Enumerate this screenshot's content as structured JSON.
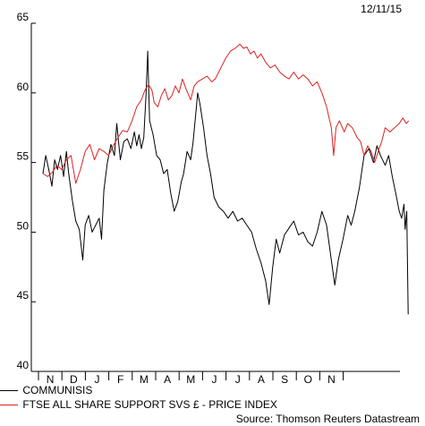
{
  "date_label": "12/11/15",
  "source_label": "Source: Thomson Reuters Datastream",
  "chart_data": {
    "type": "line",
    "title": "",
    "xlabel": "",
    "ylabel": "",
    "ylim": [
      40,
      65
    ],
    "y_ticks": [
      40,
      45,
      50,
      55,
      60,
      65
    ],
    "x_month_labels": [
      "N",
      "D",
      "J",
      "F",
      "M",
      "A",
      "M",
      "J",
      "J",
      "A",
      "S",
      "O",
      "N"
    ],
    "grid": false,
    "legend_position": "bottom-left",
    "series": [
      {
        "name": "COMMUNISIS",
        "color": "#000000",
        "points": [
          [
            0,
            54.2
          ],
          [
            0.12,
            55.5
          ],
          [
            0.25,
            54.5
          ],
          [
            0.38,
            53.3
          ],
          [
            0.5,
            55.2
          ],
          [
            0.62,
            54.5
          ],
          [
            0.75,
            55.5
          ],
          [
            0.88,
            54
          ],
          [
            1,
            55.8
          ],
          [
            1.1,
            54.2
          ],
          [
            1.25,
            52.3
          ],
          [
            1.4,
            50.8
          ],
          [
            1.55,
            50.2
          ],
          [
            1.7,
            48
          ],
          [
            1.8,
            50.5
          ],
          [
            1.95,
            51.2
          ],
          [
            2.1,
            50
          ],
          [
            2.25,
            50.5
          ],
          [
            2.4,
            51
          ],
          [
            2.5,
            49.5
          ],
          [
            2.6,
            53
          ],
          [
            2.75,
            55
          ],
          [
            2.9,
            56.3
          ],
          [
            3.05,
            55.5
          ],
          [
            3.15,
            57.8
          ],
          [
            3.3,
            55.2
          ],
          [
            3.45,
            56.5
          ],
          [
            3.6,
            56.7
          ],
          [
            3.75,
            56
          ],
          [
            3.9,
            57.2
          ],
          [
            4.0,
            56.2
          ],
          [
            4.1,
            57
          ],
          [
            4.2,
            56
          ],
          [
            4.3,
            56.8
          ],
          [
            4.4,
            60
          ],
          [
            4.47,
            63
          ],
          [
            4.55,
            58
          ],
          [
            4.7,
            57
          ],
          [
            4.85,
            55.5
          ],
          [
            5.0,
            55.2
          ],
          [
            5.15,
            54.2
          ],
          [
            5.3,
            54.5
          ],
          [
            5.45,
            52.8
          ],
          [
            5.6,
            51.5
          ],
          [
            5.75,
            52.2
          ],
          [
            5.9,
            53.6
          ],
          [
            6.0,
            54.2
          ],
          [
            6.15,
            55.8
          ],
          [
            6.3,
            55.2
          ],
          [
            6.4,
            56.4
          ],
          [
            6.52,
            58.5
          ],
          [
            6.6,
            60
          ],
          [
            6.7,
            59.2
          ],
          [
            6.85,
            57.5
          ],
          [
            7.0,
            55.5
          ],
          [
            7.15,
            54.2
          ],
          [
            7.3,
            52.5
          ],
          [
            7.5,
            51.8
          ],
          [
            7.7,
            51.5
          ],
          [
            7.9,
            51
          ],
          [
            8.1,
            51.5
          ],
          [
            8.3,
            50.8
          ],
          [
            8.5,
            51
          ],
          [
            8.7,
            50.5
          ],
          [
            8.9,
            50
          ],
          [
            9.1,
            48.8
          ],
          [
            9.3,
            47.8
          ],
          [
            9.5,
            46.5
          ],
          [
            9.65,
            44.8
          ],
          [
            9.8,
            47.5
          ],
          [
            9.95,
            49.5
          ],
          [
            10.1,
            48.5
          ],
          [
            10.3,
            49.8
          ],
          [
            10.5,
            50.3
          ],
          [
            10.7,
            50.8
          ],
          [
            10.9,
            49.8
          ],
          [
            11.1,
            50
          ],
          [
            11.3,
            49.3
          ],
          [
            11.5,
            49
          ],
          [
            11.7,
            50
          ],
          [
            11.9,
            51.5
          ],
          [
            12.1,
            50.5
          ],
          [
            12.3,
            48
          ],
          [
            12.45,
            46.2
          ],
          [
            12.6,
            48
          ],
          [
            12.8,
            49.5
          ],
          [
            13.0,
            51.2
          ],
          [
            13.15,
            50.5
          ],
          [
            13.3,
            51.5
          ],
          [
            13.5,
            53.2
          ],
          [
            13.7,
            55.5
          ],
          [
            13.9,
            56
          ],
          [
            14.1,
            55
          ],
          [
            14.25,
            56.2
          ],
          [
            14.4,
            55.5
          ],
          [
            14.6,
            54.8
          ],
          [
            14.75,
            55.5
          ],
          [
            14.9,
            54
          ],
          [
            15.05,
            52.8
          ],
          [
            15.2,
            51.5
          ],
          [
            15.3,
            51
          ],
          [
            15.4,
            52
          ],
          [
            15.45,
            50.2
          ],
          [
            15.52,
            51.5
          ],
          [
            15.58,
            44.1
          ]
        ]
      },
      {
        "name": "FTSE ALL SHARE SUPPORT SVS £ - PRICE INDEX",
        "color": "#dd2222",
        "points": [
          [
            0,
            54.2
          ],
          [
            0.2,
            54
          ],
          [
            0.4,
            54.3
          ],
          [
            0.6,
            54.8
          ],
          [
            0.8,
            54.5
          ],
          [
            1.0,
            55.2
          ],
          [
            1.2,
            55.5
          ],
          [
            1.4,
            53.5
          ],
          [
            1.6,
            54.5
          ],
          [
            1.8,
            55.8
          ],
          [
            2.0,
            56.3
          ],
          [
            2.2,
            55.2
          ],
          [
            2.4,
            56
          ],
          [
            2.6,
            55.8
          ],
          [
            2.8,
            55.5
          ],
          [
            3.0,
            56.2
          ],
          [
            3.2,
            56.8
          ],
          [
            3.4,
            57.3
          ],
          [
            3.6,
            57.2
          ],
          [
            3.8,
            58
          ],
          [
            4.0,
            59
          ],
          [
            4.2,
            59.5
          ],
          [
            4.35,
            60.2
          ],
          [
            4.5,
            60.6
          ],
          [
            4.65,
            60.2
          ],
          [
            4.75,
            59.3
          ],
          [
            4.9,
            59
          ],
          [
            5.05,
            59.8
          ],
          [
            5.2,
            60.3
          ],
          [
            5.35,
            59.5
          ],
          [
            5.5,
            59.8
          ],
          [
            5.65,
            60.5
          ],
          [
            5.8,
            60
          ],
          [
            5.95,
            61
          ],
          [
            6.1,
            60.3
          ],
          [
            6.3,
            59.5
          ],
          [
            6.45,
            60.5
          ],
          [
            6.6,
            60.8
          ],
          [
            6.8,
            61
          ],
          [
            7.0,
            61.2
          ],
          [
            7.2,
            60.8
          ],
          [
            7.35,
            61
          ],
          [
            7.5,
            61.5
          ],
          [
            7.65,
            62
          ],
          [
            7.8,
            62.5
          ],
          [
            8.0,
            63
          ],
          [
            8.2,
            63.2
          ],
          [
            8.4,
            63.5
          ],
          [
            8.55,
            63.2
          ],
          [
            8.7,
            63.3
          ],
          [
            8.85,
            62.8
          ],
          [
            9.0,
            63
          ],
          [
            9.15,
            62.5
          ],
          [
            9.3,
            62.8
          ],
          [
            9.5,
            62.2
          ],
          [
            9.7,
            61.8
          ],
          [
            9.9,
            62
          ],
          [
            10.1,
            61.5
          ],
          [
            10.3,
            61.2
          ],
          [
            10.5,
            61
          ],
          [
            10.7,
            61.5
          ],
          [
            10.9,
            61
          ],
          [
            11.1,
            61.3
          ],
          [
            11.3,
            61
          ],
          [
            11.5,
            60.5
          ],
          [
            11.7,
            60.8
          ],
          [
            11.9,
            60
          ],
          [
            12.1,
            59
          ],
          [
            12.3,
            57.5
          ],
          [
            12.4,
            55.5
          ],
          [
            12.5,
            57.5
          ],
          [
            12.65,
            58
          ],
          [
            12.85,
            57.2
          ],
          [
            13.0,
            57.8
          ],
          [
            13.2,
            57.5
          ],
          [
            13.4,
            56.8
          ],
          [
            13.55,
            56.5
          ],
          [
            13.7,
            55.5
          ],
          [
            13.85,
            56.2
          ],
          [
            14.0,
            55.8
          ],
          [
            14.15,
            55
          ],
          [
            14.3,
            55.8
          ],
          [
            14.45,
            56.5
          ],
          [
            14.6,
            57.5
          ],
          [
            14.8,
            57.2
          ],
          [
            15.0,
            57.5
          ],
          [
            15.2,
            57.8
          ],
          [
            15.35,
            58.2
          ],
          [
            15.5,
            57.8
          ],
          [
            15.6,
            58
          ]
        ]
      }
    ]
  }
}
